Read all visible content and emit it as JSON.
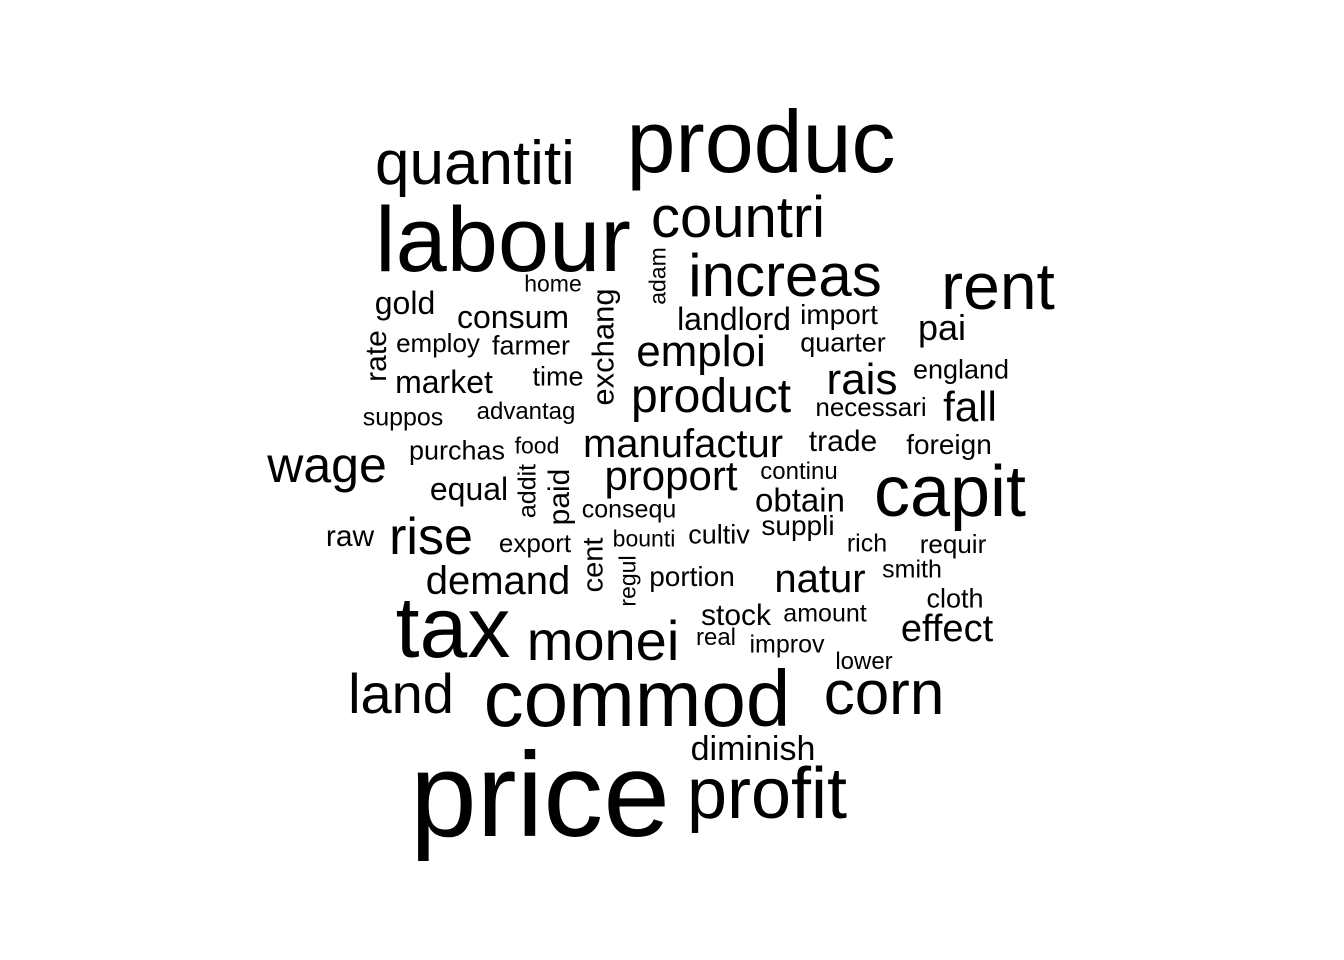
{
  "words": [
    {
      "text": "price",
      "weight": 100
    },
    {
      "text": "labour",
      "weight": 82
    },
    {
      "text": "produc",
      "weight": 80
    },
    {
      "text": "tax",
      "weight": 78
    },
    {
      "text": "commod",
      "weight": 75
    },
    {
      "text": "capit",
      "weight": 67
    },
    {
      "text": "profit",
      "weight": 64
    },
    {
      "text": "rent",
      "weight": 62
    },
    {
      "text": "corn",
      "weight": 59
    },
    {
      "text": "quantiti",
      "weight": 58
    },
    {
      "text": "increas",
      "weight": 58
    },
    {
      "text": "countri",
      "weight": 57
    },
    {
      "text": "monei",
      "weight": 55
    },
    {
      "text": "land",
      "weight": 54
    },
    {
      "text": "rise",
      "weight": 49
    },
    {
      "text": "wage",
      "weight": 47
    },
    {
      "text": "product",
      "weight": 46
    },
    {
      "text": "emploi",
      "weight": 42
    },
    {
      "text": "rais",
      "weight": 42
    },
    {
      "text": "proport",
      "weight": 41
    },
    {
      "text": "fall",
      "weight": 41
    },
    {
      "text": "manufactur",
      "weight": 40
    },
    {
      "text": "demand",
      "weight": 38
    },
    {
      "text": "natur",
      "weight": 38
    },
    {
      "text": "effect",
      "weight": 37
    },
    {
      "text": "pai",
      "weight": 36
    },
    {
      "text": "diminish",
      "weight": 34
    },
    {
      "text": "obtain",
      "weight": 32
    },
    {
      "text": "consum",
      "weight": 32
    },
    {
      "text": "landlord",
      "weight": 32
    },
    {
      "text": "gold",
      "weight": 31
    },
    {
      "text": "market",
      "weight": 31
    },
    {
      "text": "equal",
      "weight": 31
    },
    {
      "text": "exchang",
      "weight": 30
    },
    {
      "text": "trade",
      "weight": 29
    },
    {
      "text": "stock",
      "weight": 29
    },
    {
      "text": "rate",
      "weight": 28
    },
    {
      "text": "paid",
      "weight": 28
    },
    {
      "text": "cent",
      "weight": 28
    },
    {
      "text": "raw",
      "weight": 28
    },
    {
      "text": "import",
      "weight": 27
    },
    {
      "text": "portion",
      "weight": 27
    },
    {
      "text": "foreign",
      "weight": 27
    },
    {
      "text": "suppli",
      "weight": 27
    },
    {
      "text": "farmer",
      "weight": 26
    },
    {
      "text": "quarter",
      "weight": 26
    },
    {
      "text": "time",
      "weight": 26
    },
    {
      "text": "england",
      "weight": 26
    },
    {
      "text": "purchas",
      "weight": 26
    },
    {
      "text": "cultiv",
      "weight": 26
    },
    {
      "text": "cloth",
      "weight": 26
    },
    {
      "text": "employ",
      "weight": 25
    },
    {
      "text": "export",
      "weight": 25
    },
    {
      "text": "requir",
      "weight": 25
    },
    {
      "text": "necessari",
      "weight": 25
    },
    {
      "text": "consequ",
      "weight": 24
    },
    {
      "text": "addit",
      "weight": 24
    },
    {
      "text": "improv",
      "weight": 24
    },
    {
      "text": "smith",
      "weight": 24
    },
    {
      "text": "rich",
      "weight": 24
    },
    {
      "text": "suppos",
      "weight": 24
    },
    {
      "text": "amount",
      "weight": 24
    },
    {
      "text": "lower",
      "weight": 23
    },
    {
      "text": "real",
      "weight": 23
    },
    {
      "text": "continu",
      "weight": 23
    },
    {
      "text": "advantag",
      "weight": 23
    },
    {
      "text": "adam",
      "weight": 22
    },
    {
      "text": "home",
      "weight": 22
    },
    {
      "text": "bounti",
      "weight": 22
    },
    {
      "text": "food",
      "weight": 22
    },
    {
      "text": "regul",
      "weight": 22
    }
  ]
}
